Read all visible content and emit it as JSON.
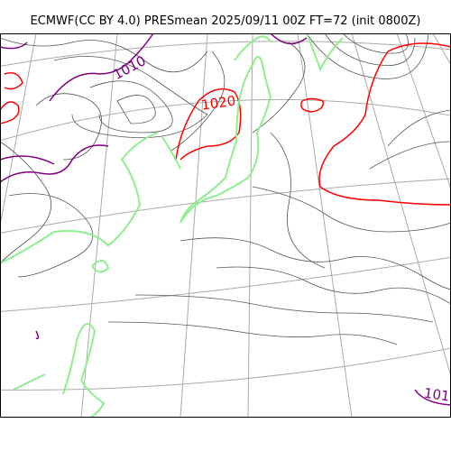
{
  "title": "ECMWF(CC BY 4.0) PRESmean 2025/09/11 00Z FT=72 (init 0800Z)",
  "contour_labels": {
    "label_1010": "1010",
    "label_1020": "1020",
    "label_101_edge": "101"
  },
  "colors": {
    "isobar_thin": "#555555",
    "isobar_1010": "#800080",
    "isobar_1020": "#ff0000",
    "coastline": "#90ee90",
    "graticule": "#aaaaaa",
    "frame": "#000000"
  }
}
